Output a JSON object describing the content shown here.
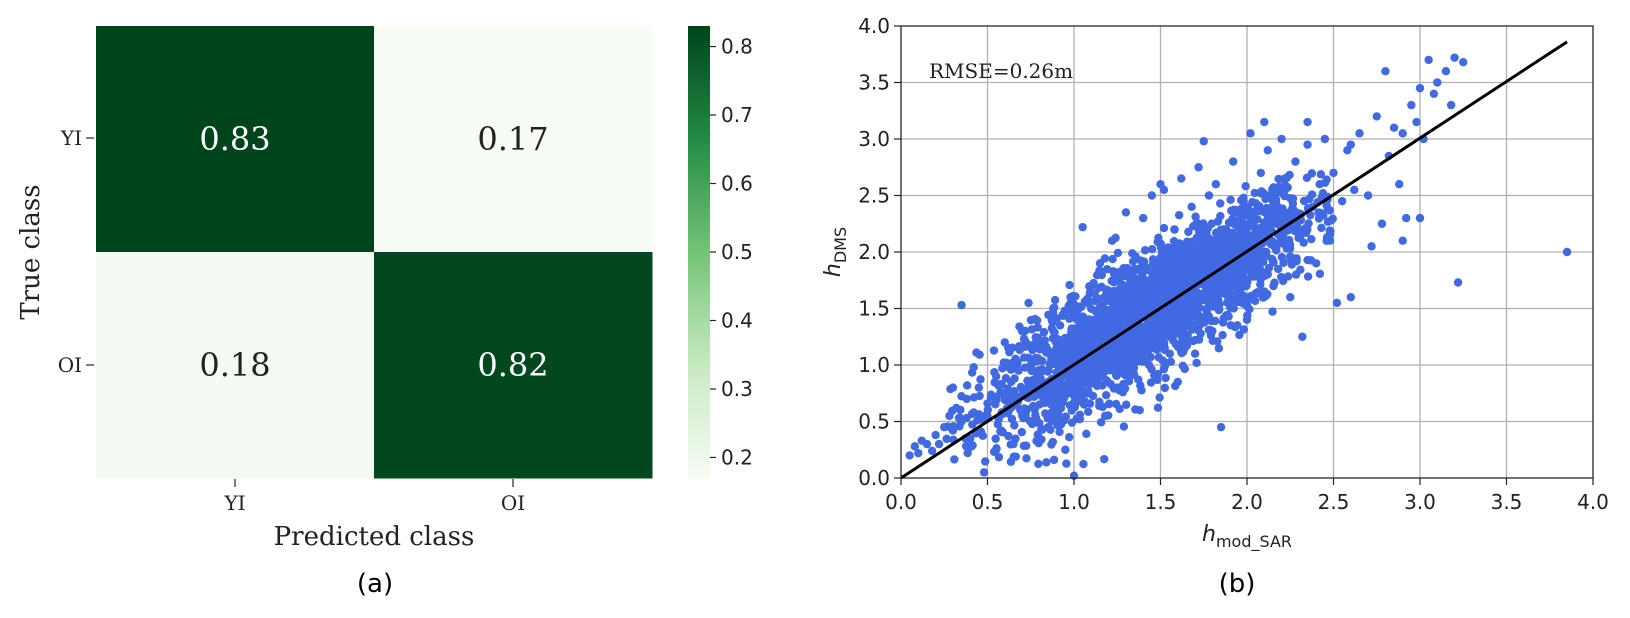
{
  "chart_data": [
    {
      "type": "heatmap",
      "rows": [
        "YI",
        "OI"
      ],
      "cols": [
        "YI",
        "OI"
      ],
      "values": [
        [
          0.83,
          0.17
        ],
        [
          0.18,
          0.82
        ]
      ],
      "value_labels": [
        [
          "0.83",
          "0.17"
        ],
        [
          "0.18",
          "0.82"
        ]
      ],
      "xlabel": "Predicted class",
      "ylabel": "True class",
      "colorbar": {
        "range": [
          0.17,
          0.83
        ],
        "ticks": [
          "0.2",
          "0.3",
          "0.4",
          "0.5",
          "0.6",
          "0.7",
          "0.8"
        ],
        "colors": [
          "#f7fcf5",
          "#c7e9c0",
          "#74c476",
          "#238b45",
          "#00441b"
        ]
      },
      "panel_label": "(a)"
    },
    {
      "type": "scatter",
      "xlabel_main": "h",
      "xlabel_sub": "mod_SAR",
      "ylabel_main": "h",
      "ylabel_sub": "DMS",
      "xlim": [
        0.0,
        4.0
      ],
      "ylim": [
        0.0,
        4.0
      ],
      "xticks": [
        "0.0",
        "0.5",
        "1.0",
        "1.5",
        "2.0",
        "2.5",
        "3.0",
        "3.5",
        "4.0"
      ],
      "yticks": [
        "0.0",
        "0.5",
        "1.0",
        "1.5",
        "2.0",
        "2.5",
        "3.0",
        "3.5",
        "4.0"
      ],
      "grid": true,
      "annotation": "RMSE=0.26m",
      "point_color": "#4169e1",
      "line_color": "#000000",
      "fit_line": [
        [
          0.0,
          0.0
        ],
        [
          3.85,
          3.86
        ]
      ],
      "series": [
        {
          "values": [
            [
              0.05,
              0.2
            ],
            [
              0.08,
              0.28
            ],
            [
              0.1,
              0.22
            ],
            [
              0.12,
              0.33
            ],
            [
              0.15,
              0.3
            ],
            [
              0.18,
              0.24
            ],
            [
              0.2,
              0.38
            ],
            [
              0.22,
              0.3
            ],
            [
              0.25,
              0.45
            ],
            [
              0.28,
              0.55
            ],
            [
              0.3,
              0.42
            ],
            [
              0.32,
              0.62
            ],
            [
              0.35,
              0.5
            ],
            [
              0.38,
              0.7
            ],
            [
              0.4,
              0.35
            ],
            [
              0.42,
              0.58
            ],
            [
              0.45,
              0.8
            ],
            [
              0.48,
              0.05
            ],
            [
              0.5,
              0.66
            ],
            [
              0.55,
              0.9
            ],
            [
              0.58,
              0.42
            ],
            [
              0.6,
              0.75
            ],
            [
              0.62,
              1.15
            ],
            [
              0.65,
              0.3
            ],
            [
              0.68,
              0.95
            ],
            [
              0.7,
              1.3
            ],
            [
              0.72,
              0.55
            ],
            [
              0.75,
              1.05
            ],
            [
              0.78,
              1.4
            ],
            [
              0.8,
              0.65
            ],
            [
              0.82,
              1.2
            ],
            [
              0.85,
              0.45
            ],
            [
              0.88,
              1.5
            ],
            [
              0.9,
              0.85
            ],
            [
              0.92,
              1.35
            ],
            [
              0.95,
              0.25
            ],
            [
              0.98,
              1.6
            ],
            [
              1.0,
              0.02
            ],
            [
              1.02,
              1.1
            ],
            [
              1.05,
              2.22
            ],
            [
              1.08,
              0.75
            ],
            [
              1.1,
              1.7
            ],
            [
              1.12,
              0.95
            ],
            [
              1.15,
              1.9
            ],
            [
              1.18,
              0.55
            ],
            [
              1.2,
              1.45
            ],
            [
              1.22,
              2.1
            ],
            [
              1.25,
              0.8
            ],
            [
              1.28,
              1.65
            ],
            [
              1.3,
              2.35
            ],
            [
              1.32,
              1.0
            ],
            [
              1.35,
              1.85
            ],
            [
              1.38,
              0.6
            ],
            [
              1.4,
              2.3
            ],
            [
              1.42,
              1.25
            ],
            [
              1.45,
              2.5
            ],
            [
              1.48,
              0.9
            ],
            [
              1.5,
              1.95
            ],
            [
              1.52,
              2.55
            ],
            [
              1.55,
              1.4
            ],
            [
              1.58,
              2.2
            ],
            [
              1.6,
              0.85
            ],
            [
              1.62,
              2.65
            ],
            [
              1.65,
              1.6
            ],
            [
              1.68,
              2.4
            ],
            [
              1.7,
              1.1
            ],
            [
              1.72,
              2.75
            ],
            [
              1.75,
              1.8
            ],
            [
              1.78,
              2.5
            ],
            [
              1.8,
              1.3
            ],
            [
              1.82,
              2.6
            ],
            [
              1.85,
              0.45
            ],
            [
              1.88,
              2.2
            ],
            [
              1.9,
              1.55
            ],
            [
              1.92,
              2.8
            ],
            [
              1.95,
              1.9
            ],
            [
              1.98,
              2.45
            ],
            [
              2.0,
              1.4
            ],
            [
              2.02,
              3.05
            ],
            [
              2.05,
              2.1
            ],
            [
              2.08,
              2.7
            ],
            [
              2.1,
              1.65
            ],
            [
              2.12,
              2.9
            ],
            [
              2.15,
              2.3
            ],
            [
              2.18,
              1.85
            ],
            [
              2.2,
              3.0
            ],
            [
              2.22,
              2.55
            ],
            [
              2.25,
              1.6
            ],
            [
              2.28,
              2.8
            ],
            [
              2.3,
              2.2
            ],
            [
              2.32,
              1.25
            ],
            [
              2.35,
              2.95
            ],
            [
              2.38,
              2.4
            ],
            [
              2.4,
              1.9
            ],
            [
              2.42,
              2.6
            ],
            [
              2.45,
              3.0
            ],
            [
              2.48,
              2.1
            ],
            [
              2.5,
              2.7
            ],
            [
              2.52,
              1.55
            ],
            [
              2.55,
              2.45
            ],
            [
              2.58,
              2.9
            ],
            [
              2.6,
              1.6
            ],
            [
              2.62,
              2.55
            ],
            [
              2.65,
              3.05
            ],
            [
              2.7,
              2.5
            ],
            [
              2.72,
              2.05
            ],
            [
              2.75,
              3.2
            ],
            [
              2.78,
              2.25
            ],
            [
              2.8,
              3.6
            ],
            [
              2.82,
              2.85
            ],
            [
              2.85,
              3.1
            ],
            [
              2.88,
              2.6
            ],
            [
              2.9,
              3.05
            ],
            [
              2.92,
              2.3
            ],
            [
              2.95,
              3.3
            ],
            [
              2.98,
              3.15
            ],
            [
              3.0,
              3.45
            ],
            [
              3.02,
              3.0
            ],
            [
              3.05,
              3.7
            ],
            [
              3.08,
              3.4
            ],
            [
              3.1,
              3.5
            ],
            [
              3.15,
              3.6
            ],
            [
              3.18,
              3.3
            ],
            [
              3.2,
              3.72
            ],
            [
              3.22,
              1.73
            ],
            [
              3.25,
              3.68
            ],
            [
              3.0,
              2.3
            ],
            [
              2.9,
              2.1
            ],
            [
              3.85,
              2.0
            ],
            [
              0.3,
              0.8
            ],
            [
              0.35,
              1.53
            ],
            [
              0.55,
              0.25
            ],
            [
              0.6,
              1.2
            ],
            [
              1.5,
              2.6
            ],
            [
              1.75,
              2.98
            ],
            [
              2.1,
              3.15
            ],
            [
              2.35,
              3.15
            ],
            [
              0.42,
              0.98
            ],
            [
              2.6,
              2.95
            ]
          ]
        }
      ],
      "panel_label": "(b)"
    }
  ]
}
